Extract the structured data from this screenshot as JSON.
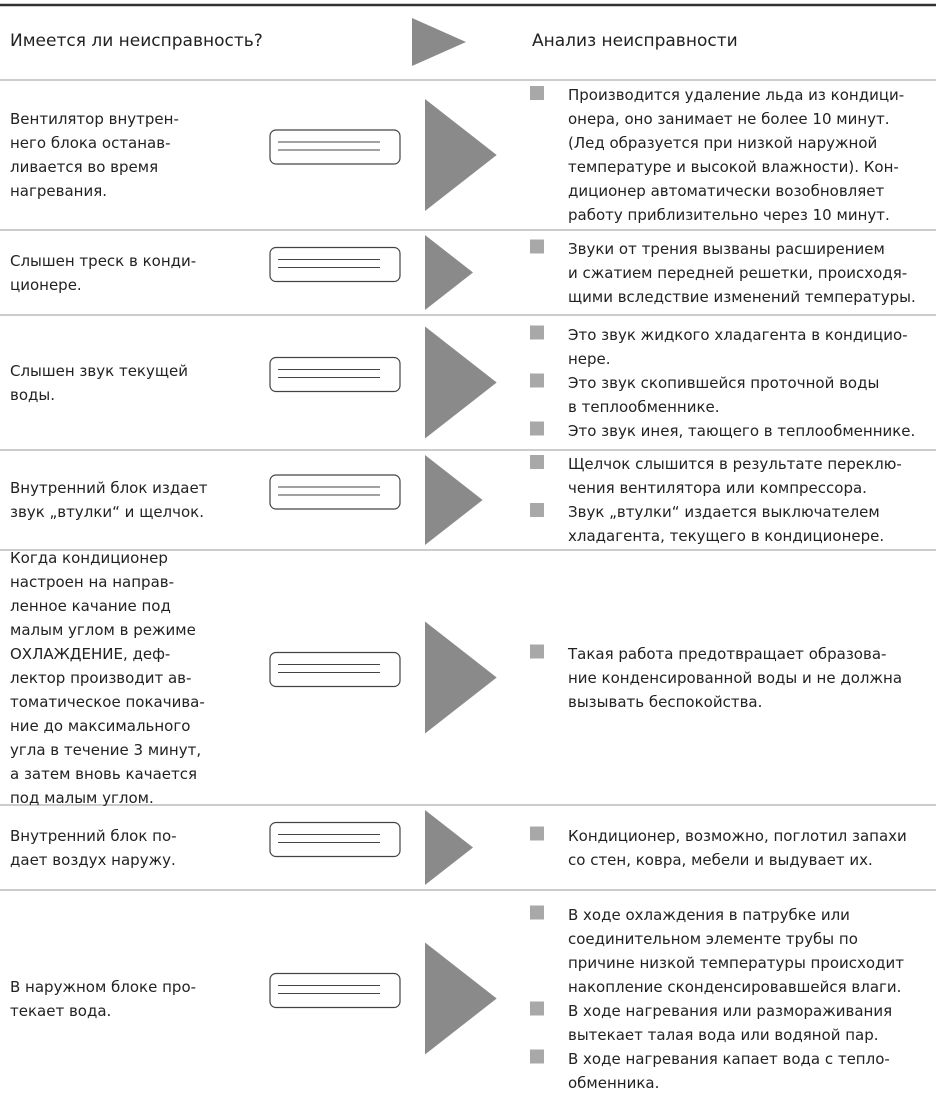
{
  "header": {
    "problem": "Имеется ли неисправность?",
    "analysis": "Анализ неисправности"
  },
  "rows": [
    {
      "problem": [
        "Вентилятор внутрен-",
        "него блока останав-",
        "ливается во время",
        "нагревания."
      ],
      "analysis": [
        [
          "Производится удаление льда из кондици-",
          "онера, оно занимает не более 10 минут.",
          "(Лед образуется при низкой наружной",
          "температуре и высокой влажности). Кон-",
          "диционер автоматически возобновляет",
          "работу приблизительно через 10 минут."
        ]
      ]
    },
    {
      "problem": [
        "Слышен треск в конди-",
        "ционере."
      ],
      "analysis": [
        [
          "Звуки от трения вызваны расширением",
          "и сжатием передней решетки, происходя-",
          "щими вследствие изменений температуры."
        ]
      ]
    },
    {
      "problem": [
        "Слышен звук текущей",
        "воды."
      ],
      "analysis": [
        [
          "Это звук жидкого хладагента в кондицио-",
          "нере."
        ],
        [
          "Это звук скопившейся проточной воды",
          "в теплообменнике."
        ],
        [
          "Это звук инея, тающего в теплообменнике."
        ]
      ]
    },
    {
      "problem": [
        "Внутренний блок издает",
        "звук „втулки“ и щелчок."
      ],
      "analysis": [
        [
          "Щелчок слышится в результате переклю-",
          "чения вентилятора или компрессора."
        ],
        [
          "Звук „втулки“ издается выключателем",
          "хладагента, текущего в кондиционере."
        ]
      ]
    },
    {
      "problem": [
        "Когда кондиционер",
        "настроен на направ-",
        "ленное качание под",
        "малым углом в режиме",
        "ОХЛАЖДЕНИЕ, деф-",
        "лектор производит ав-",
        "томатическое покачива-",
        "ние до максимального",
        "угла в течение 3 минут,",
        "а затем вновь качается",
        "под малым углом."
      ],
      "analysis": [
        [
          "Такая работа предотвращает образова-",
          "ние конденсированной воды и не должна",
          "вызывать беспокойства."
        ]
      ]
    },
    {
      "problem": [
        "Внутренний блок по-",
        "дает воздух наружу."
      ],
      "analysis": [
        [
          "Кондиционер, возможно, поглотил запахи",
          "со стен, ковра, мебели и выдувает их."
        ]
      ]
    },
    {
      "problem": [
        "В наружном блоке про-",
        "текает вода."
      ],
      "analysis": [
        [
          "В ходе охлаждения в патрубке или",
          "соединительном элементе трубы по",
          "причине низкой температуры происходит",
          "накопление сконденсировавшейся влаги."
        ],
        [
          "В ходе нагревания или размораживания",
          "вытекает талая вода или водяной пар."
        ],
        [
          "В ходе нагревания капает вода с тепло-",
          "обменника."
        ]
      ]
    }
  ]
}
